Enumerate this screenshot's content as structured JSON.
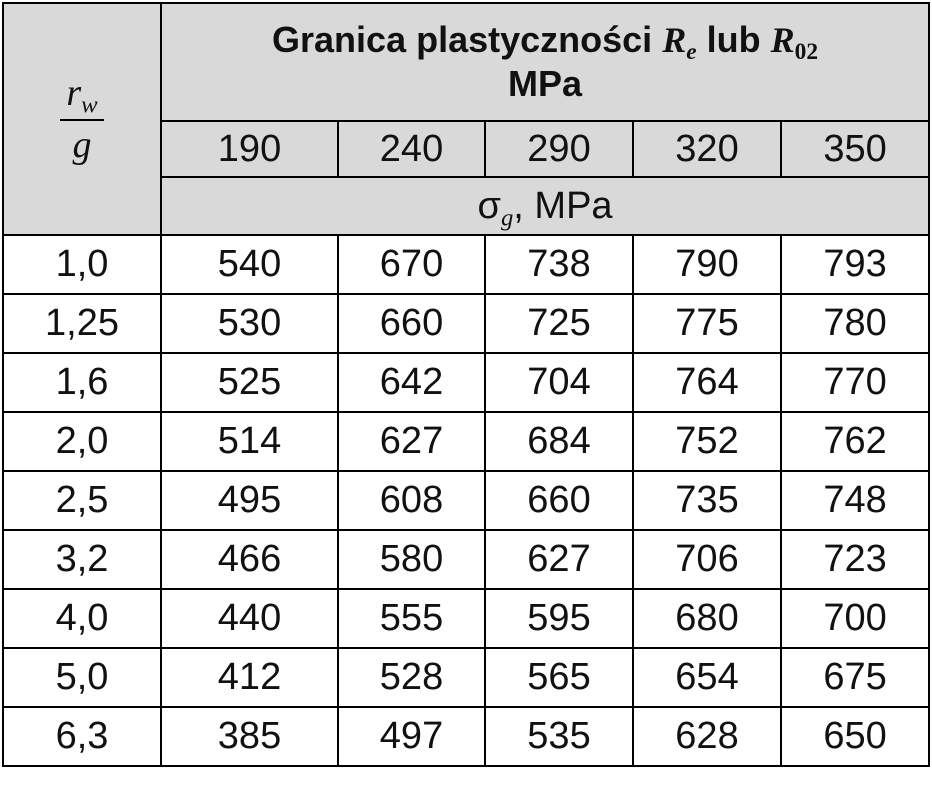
{
  "header": {
    "title": "Granica plastyczności",
    "symbol1": "R",
    "subscript1": "e",
    "conjunction": "lub",
    "symbol2": "R",
    "subscript2": "02",
    "unit": "MPa"
  },
  "row_header": {
    "numerator": "r",
    "numerator_subscript": "w",
    "denominator": "g"
  },
  "columns": [
    190,
    240,
    290,
    320,
    350
  ],
  "subheader": {
    "symbol": "σ",
    "subscript": "g",
    "unit": ", MPa"
  },
  "rows": [
    {
      "label": "1,0",
      "values": [
        540,
        670,
        738,
        790,
        793
      ]
    },
    {
      "label": "1,25",
      "values": [
        530,
        660,
        725,
        775,
        780
      ]
    },
    {
      "label": "1,6",
      "values": [
        525,
        642,
        704,
        764,
        770
      ]
    },
    {
      "label": "2,0",
      "values": [
        514,
        627,
        684,
        752,
        762
      ]
    },
    {
      "label": "2,5",
      "values": [
        495,
        608,
        660,
        735,
        748
      ]
    },
    {
      "label": "3,2",
      "values": [
        466,
        580,
        627,
        706,
        723
      ]
    },
    {
      "label": "4,0",
      "values": [
        440,
        555,
        595,
        680,
        700
      ]
    },
    {
      "label": "5,0",
      "values": [
        412,
        528,
        565,
        654,
        675
      ]
    },
    {
      "label": "6,3",
      "values": [
        385,
        497,
        535,
        628,
        650
      ]
    }
  ]
}
